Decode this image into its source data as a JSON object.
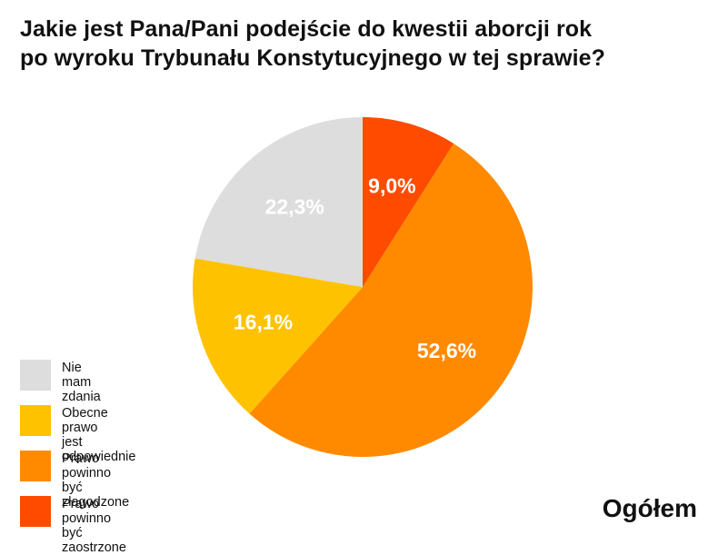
{
  "title_lines": [
    "Jakie jest Pana/Pani podejście do kwestii aborcji rok",
    "po wyroku Trybunału Konstytucyjnego w tej sprawie?"
  ],
  "subtitle": "Ogółem",
  "chart_data": {
    "type": "pie",
    "title": "Jakie jest Pana/Pani podejście do kwestii aborcji rok po wyroku Trybunału Konstytucyjnego w tej sprawie?",
    "slices": [
      {
        "label": "Prawo powinno\nbyć zaostrzone",
        "value": 9.0,
        "display": "9,0%",
        "color": "#FF4B00"
      },
      {
        "label": "Prawo powinno\nbyć złagodzone",
        "value": 52.6,
        "display": "52,6%",
        "color": "#FF8A00"
      },
      {
        "label": "Obecne prawo\njest odpowiednie",
        "value": 16.1,
        "display": "16,1%",
        "color": "#FFC200"
      },
      {
        "label": "Nie mam zdania",
        "value": 22.3,
        "display": "22,3%",
        "color": "#DDDDDD"
      }
    ],
    "legend_order": [
      3,
      2,
      1,
      0
    ],
    "legend_position": "bottom-left"
  }
}
